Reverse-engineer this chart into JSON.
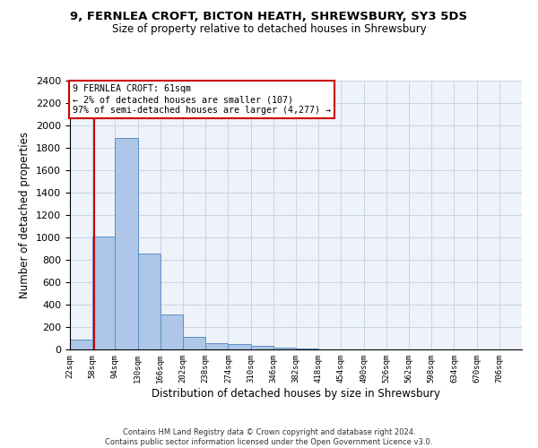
{
  "title_line1": "9, FERNLEA CROFT, BICTON HEATH, SHREWSBURY, SY3 5DS",
  "title_line2": "Size of property relative to detached houses in Shrewsbury",
  "xlabel": "Distribution of detached houses by size in Shrewsbury",
  "ylabel": "Number of detached properties",
  "bin_edges": [
    22,
    58,
    94,
    130,
    166,
    202,
    238,
    274,
    310,
    346,
    382,
    418,
    454,
    490,
    526,
    562,
    598,
    634,
    670,
    706,
    742
  ],
  "bar_heights": [
    90,
    1010,
    1890,
    860,
    310,
    115,
    55,
    45,
    30,
    15,
    5,
    3,
    1,
    1,
    0,
    0,
    0,
    0,
    0,
    0
  ],
  "bar_color": "#aec6e8",
  "bar_edge_color": "#5a8fc2",
  "property_size": 61,
  "property_label": "9 FERNLEA CROFT: 61sqm",
  "annotation_line2": "← 2% of detached houses are smaller (107)",
  "annotation_line3": "97% of semi-detached houses are larger (4,277) →",
  "vline_color": "#cc0000",
  "annotation_box_color": "#cc0000",
  "ylim": [
    0,
    2400
  ],
  "yticks": [
    0,
    200,
    400,
    600,
    800,
    1000,
    1200,
    1400,
    1600,
    1800,
    2000,
    2200,
    2400
  ],
  "footer_line1": "Contains HM Land Registry data © Crown copyright and database right 2024.",
  "footer_line2": "Contains public sector information licensed under the Open Government Licence v3.0.",
  "background_color": "#ffffff",
  "ax_background_color": "#eef2f9",
  "grid_color": "#c8d4e8"
}
